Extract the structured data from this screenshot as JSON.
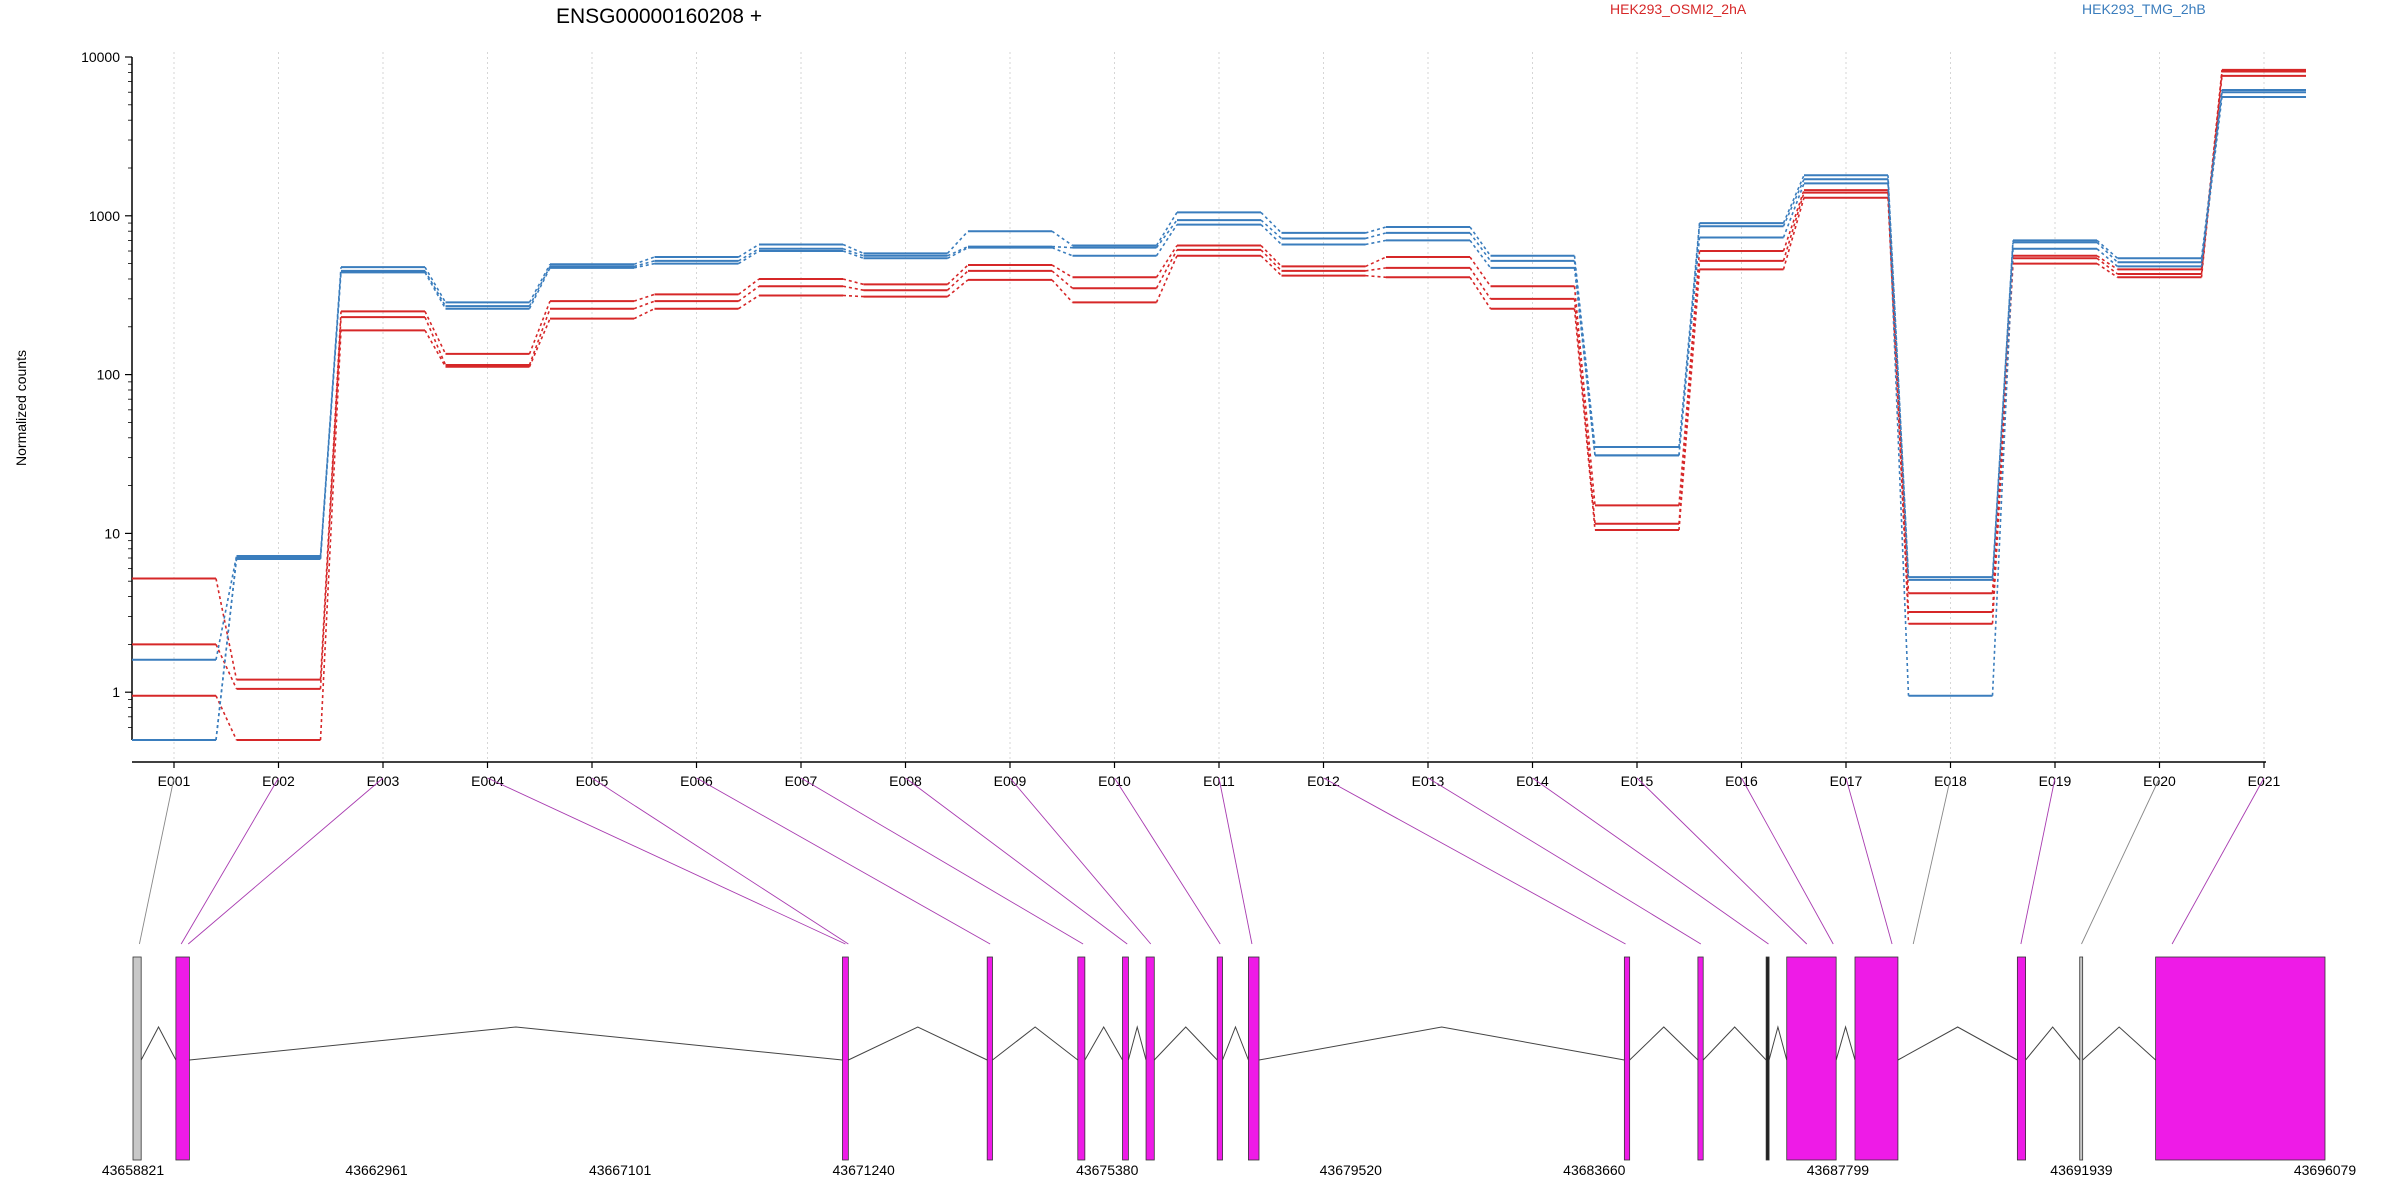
{
  "chart_data": {
    "type": "line",
    "title": "ENSG00000160208 +",
    "ylabel": "Normalized counts",
    "yscale": "log",
    "ylim": [
      0.5,
      10000
    ],
    "yticks": [
      "1",
      "10",
      "100",
      "1000",
      "10000"
    ],
    "xticks": [
      "E001",
      "E002",
      "E003",
      "E004",
      "E005",
      "E006",
      "E007",
      "E008",
      "E009",
      "E010",
      "E011",
      "E012",
      "E013",
      "E014",
      "E015",
      "E016",
      "E017",
      "E018",
      "E019",
      "E020",
      "E021"
    ],
    "grid": "vertical dotted",
    "legend_position": "top",
    "colors": {
      "HEK293_OSMI2_2hA": "#d62728",
      "HEK293_TMG_2hB": "#3a7dbd",
      "exon": "#ee1be7",
      "exon_light": "#c8c8c8",
      "connector": "#a83bb0"
    },
    "series": [
      {
        "name": "HEK293_OSMI2_2hA",
        "values": [
          5.2,
          1.2,
          250,
          135,
          290,
          320,
          400,
          370,
          490,
          410,
          650,
          480,
          550,
          360,
          15,
          600,
          1450,
          4.2,
          560,
          460,
          8300
        ]
      },
      {
        "name": "HEK293_OSMI2_2hA",
        "values": [
          2,
          1.05,
          230,
          115,
          260,
          290,
          360,
          340,
          450,
          350,
          610,
          450,
          470,
          300,
          11.5,
          520,
          1400,
          3.2,
          540,
          430,
          8100
        ]
      },
      {
        "name": "HEK293_OSMI2_2hA",
        "values": [
          0.95,
          0.5,
          190,
          112,
          225,
          260,
          315,
          310,
          395,
          285,
          560,
          420,
          410,
          260,
          10.5,
          460,
          1300,
          2.7,
          500,
          410,
          7600
        ]
      },
      {
        "name": "HEK293_TMG_2hB",
        "values": [
          1.6,
          7.2,
          475,
          285,
          495,
          550,
          660,
          580,
          800,
          650,
          1050,
          780,
          850,
          560,
          35,
          900,
          1800,
          5.3,
          700,
          540,
          6200
        ]
      },
      {
        "name": "HEK293_TMG_2hB",
        "values": [
          0.5,
          7.0,
          450,
          270,
          480,
          520,
          620,
          560,
          640,
          630,
          940,
          720,
          780,
          520,
          31,
          860,
          1700,
          5.1,
          680,
          510,
          6000
        ]
      },
      {
        "name": "HEK293_TMG_2hB",
        "values": [
          0.5,
          6.9,
          440,
          260,
          470,
          500,
          600,
          540,
          630,
          560,
          880,
          660,
          700,
          470,
          31,
          730,
          1600,
          0.95,
          620,
          480,
          5600
        ]
      }
    ],
    "gene_model": {
      "coordinate_labels": [
        "43658821",
        "43662961",
        "43667101",
        "43671240",
        "43675380",
        "43679520",
        "43683660",
        "43687799",
        "43691939",
        "43696079"
      ],
      "coordinate_range": [
        43658821,
        43696079
      ],
      "exons": [
        {
          "start": 43658821,
          "end": 43658960,
          "type": "light",
          "bin": 1
        },
        {
          "start": 43659550,
          "end": 43659780,
          "type": "coding",
          "bin": 2
        },
        {
          "start": 43670880,
          "end": 43670980,
          "type": "coding",
          "bin": 5
        },
        {
          "start": 43673340,
          "end": 43673430,
          "type": "coding",
          "bin": 6
        },
        {
          "start": 43674880,
          "end": 43675000,
          "type": "coding",
          "bin": 8
        },
        {
          "start": 43675640,
          "end": 43675740,
          "type": "coding",
          "bin": 9
        },
        {
          "start": 43676040,
          "end": 43676180,
          "type": "coding",
          "bin": 10
        },
        {
          "start": 43677250,
          "end": 43677340,
          "type": "coding",
          "bin": 11
        },
        {
          "start": 43677780,
          "end": 43677960,
          "type": "coding",
          "bin": 12
        },
        {
          "start": 43684170,
          "end": 43684260,
          "type": "coding",
          "bin": 13
        },
        {
          "start": 43685420,
          "end": 43685510,
          "type": "coding",
          "bin": 14
        },
        {
          "start": 43686580,
          "end": 43686630,
          "type": "line",
          "bin": 15
        },
        {
          "start": 43686930,
          "end": 43687770,
          "type": "coding",
          "bin": 16
        },
        {
          "start": 43688090,
          "end": 43688820,
          "type": "coding",
          "bin": 17
        },
        {
          "start": 43690850,
          "end": 43690990,
          "type": "coding",
          "bin": 18
        },
        {
          "start": 43691910,
          "end": 43691960,
          "type": "light",
          "bin": 19
        },
        {
          "start": 43693200,
          "end": 43696079,
          "type": "coding",
          "bin": 20
        }
      ],
      "connectors": [
        {
          "label": 0,
          "x": 43658930
        },
        {
          "label": 1,
          "x": 43659640
        },
        {
          "label": 2,
          "x": 43659760
        },
        {
          "label": 3,
          "x": 43670930
        },
        {
          "label": 4,
          "x": 43670980
        },
        {
          "label": 5,
          "x": 43673390
        },
        {
          "label": 6,
          "x": 43674970
        },
        {
          "label": 7,
          "x": 43675720
        },
        {
          "label": 8,
          "x": 43676120
        },
        {
          "label": 9,
          "x": 43677300
        },
        {
          "label": 10,
          "x": 43677840
        },
        {
          "label": 11,
          "x": 43684190
        },
        {
          "label": 12,
          "x": 43685470
        },
        {
          "label": 13,
          "x": 43686620
        },
        {
          "label": 14,
          "x": 43687270
        },
        {
          "label": 15,
          "x": 43687720
        },
        {
          "label": 16,
          "x": 43688720
        },
        {
          "label": 17,
          "x": 43689080
        },
        {
          "label": 18,
          "x": 43690910
        },
        {
          "label": 19,
          "x": 43691940
        },
        {
          "label": 20,
          "x": 43693480
        }
      ]
    }
  }
}
